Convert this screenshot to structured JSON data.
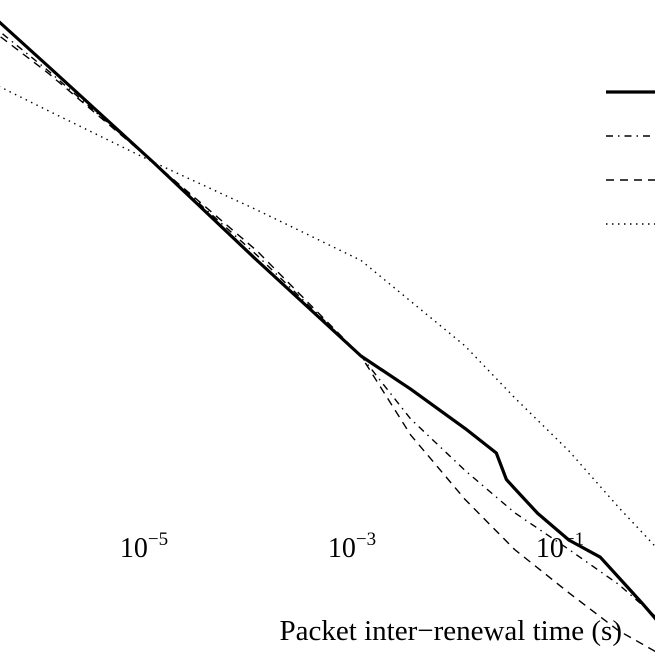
{
  "chart_data": {
    "type": "line",
    "title": "",
    "xlabel": "Packet inter−renewal time (s)",
    "ylabel": "",
    "x_scale": "log",
    "y_scale": "log",
    "xlim": [
      1e-07,
      1.5
    ],
    "grid": false,
    "legend": {
      "placement": "top-right",
      "entries": [
        {
          "name": "",
          "style": "solid"
        },
        {
          "name": "",
          "style": "dashdot"
        },
        {
          "name": "",
          "style": "dashed"
        },
        {
          "name": "",
          "style": "dotted"
        }
      ]
    },
    "x_ticks": [
      {
        "value": 1e-05,
        "base": "10",
        "exp": "−5"
      },
      {
        "value": 0.001,
        "base": "10",
        "exp": "−3"
      },
      {
        "value": 0.1,
        "base": "10",
        "exp": "−1"
      }
    ],
    "series": [
      {
        "name": "",
        "style": "solid",
        "color": "#000000",
        "x": [
          1e-07,
          1e-06,
          1e-05,
          0.0001,
          0.001,
          0.003,
          0.01,
          0.02,
          0.025,
          0.03,
          0.05,
          0.1,
          0.2,
          0.5,
          1.0
        ],
        "y": [
          6.1,
          0.97,
          0.152,
          0.0223,
          0.00345,
          0.00181,
          0.00084,
          0.00052,
          0.00031,
          0.00026,
          0.00016,
          9.5e-05,
          6.8e-05,
          2.8e-05,
          1.38e-05
        ]
      },
      {
        "name": "",
        "style": "dashdot",
        "color": "#000000",
        "x": [
          1e-07,
          1e-06,
          1e-05,
          0.0001,
          0.001,
          0.003,
          0.01,
          0.03,
          0.1,
          0.3,
          1.0
        ],
        "y": [
          4.6,
          0.89,
          0.152,
          0.0246,
          0.00345,
          0.00101,
          0.00037,
          0.000162,
          7.9e-05,
          4e-05,
          1.59e-05
        ]
      },
      {
        "name": "",
        "style": "dashed",
        "color": "#000000",
        "x": [
          1e-07,
          1e-06,
          1e-05,
          0.0001,
          0.001,
          0.003,
          0.01,
          0.03,
          0.1,
          0.3,
          1.0
        ],
        "y": [
          4.0,
          0.85,
          0.152,
          0.0268,
          0.00345,
          0.00074,
          0.00021,
          7.9e-05,
          3.39e-05,
          1.62e-05,
          8.9e-06
        ]
      },
      {
        "name": "",
        "style": "dotted",
        "color": "#000000",
        "x": [
          1e-07,
          1e-06,
          1e-05,
          0.0001,
          0.001,
          0.01,
          0.03,
          0.1,
          0.3,
          1.0
        ],
        "y": [
          1.12,
          0.41,
          0.152,
          0.0596,
          0.0223,
          0.0042,
          0.00153,
          0.00054,
          0.00018,
          5.8e-05
        ]
      }
    ]
  }
}
